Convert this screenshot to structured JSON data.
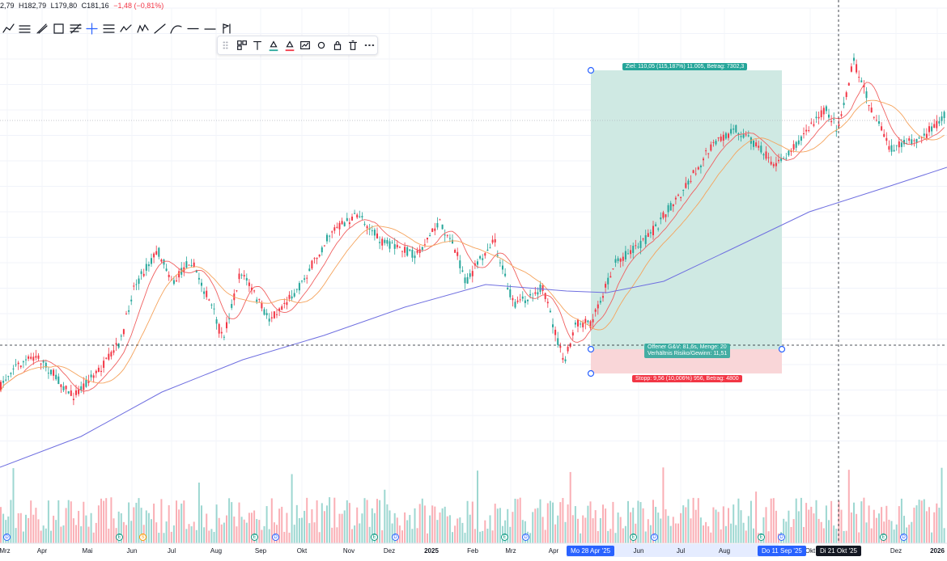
{
  "ohlc": {
    "open": "2,79",
    "high": "H182,79",
    "low": "L179,80",
    "close": "C181,16",
    "change": "−1,48 (−0,81%)"
  },
  "drawing_tools": [
    "trend-line-icon",
    "parallel-channel-icon",
    "pitchfork-icon",
    "rectangle-icon",
    "fib-retracement-icon",
    "crosshair-icon",
    "horizontal-channel-icon",
    "path-icon",
    "xabcd-icon",
    "ray-icon",
    "curve-icon",
    "horizontal-ray-icon",
    "extended-line-icon",
    "flag-brush-icon"
  ],
  "floating_toolbar": [
    "drag-handle-icon",
    "template-icon",
    "text-icon",
    "fill-color-icon",
    "line-color-icon",
    "settings-chart-icon",
    "gear-icon",
    "lock-icon",
    "trash-icon",
    "more-icon"
  ],
  "position": {
    "target_label": "Ziel: 110,05 (115,187%) 11.005, Betrag: 7302,3",
    "stop_label": "Stopp: 9,56 (10,006%) 956, Betrag: 4800",
    "open_pl": "Offener G&V: 81,6s, Menge: 20",
    "risk_reward": "Verhältnis Risiko/Gewinn: 11,51"
  },
  "x_axis": {
    "labels": [
      {
        "text": "Mrz",
        "bold": false
      },
      {
        "text": "Apr",
        "bold": false
      },
      {
        "text": "Mai",
        "bold": false
      },
      {
        "text": "Jun",
        "bold": false
      },
      {
        "text": "Jul",
        "bold": false
      },
      {
        "text": "Aug",
        "bold": false
      },
      {
        "text": "Sep",
        "bold": false
      },
      {
        "text": "Okt",
        "bold": false
      },
      {
        "text": "Nov",
        "bold": false
      },
      {
        "text": "Dez",
        "bold": false
      },
      {
        "text": "2025",
        "bold": true
      },
      {
        "text": "Feb",
        "bold": false
      },
      {
        "text": "Mrz",
        "bold": false
      },
      {
        "text": "Apr",
        "bold": false
      },
      {
        "text": "Jun",
        "bold": false
      },
      {
        "text": "Jul",
        "bold": false
      },
      {
        "text": "Aug",
        "bold": false
      },
      {
        "text": "Okt",
        "bold": false
      },
      {
        "text": "Dez",
        "bold": false
      },
      {
        "text": "2026",
        "bold": true
      }
    ],
    "date_tags": [
      {
        "text": "Mo 28 Apr '25",
        "style": "blue"
      },
      {
        "text": "Do 11 Sep '25",
        "style": "blue"
      },
      {
        "text": "Di 21 Okt '25",
        "style": "dark"
      }
    ]
  },
  "events": [
    {
      "type": "div",
      "glyph": "D"
    },
    {
      "type": "earn",
      "glyph": "E"
    },
    {
      "type": "split",
      "glyph": "S"
    },
    {
      "type": "earn",
      "glyph": "E"
    },
    {
      "type": "div",
      "glyph": "D"
    },
    {
      "type": "earn",
      "glyph": "E"
    },
    {
      "type": "div",
      "glyph": "D"
    },
    {
      "type": "earn",
      "glyph": "E"
    },
    {
      "type": "div",
      "glyph": "D"
    },
    {
      "type": "earn",
      "glyph": "E"
    },
    {
      "type": "div",
      "glyph": "D"
    },
    {
      "type": "earn",
      "glyph": "E"
    },
    {
      "type": "div",
      "glyph": "D"
    },
    {
      "type": "earn",
      "glyph": "E"
    },
    {
      "type": "div",
      "glyph": "D"
    }
  ],
  "colors": {
    "up": "#26a69a",
    "down": "#f23645",
    "ma_fast": "#f06060",
    "ma_mid": "#f5a35c",
    "ma_slow": "#6f6fe0",
    "target_zone": "#cfe9e3",
    "stop_zone": "#f9d6d8"
  }
}
